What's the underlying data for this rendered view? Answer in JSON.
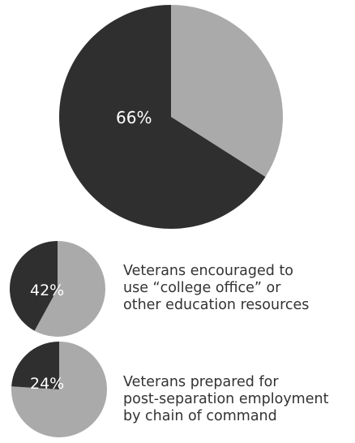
{
  "chart_data": [
    {
      "type": "pie",
      "slices": [
        {
          "value": 66,
          "label": "66%",
          "color": "#2f2f2f"
        },
        {
          "value": 34,
          "label": "",
          "color": "#aaaaaa"
        }
      ],
      "caption_lines": []
    },
    {
      "type": "pie",
      "slices": [
        {
          "value": 42,
          "label": "42%",
          "color": "#2f2f2f"
        },
        {
          "value": 58,
          "label": "",
          "color": "#aaaaaa"
        }
      ],
      "caption_lines": [
        "Veterans encouraged to",
        "use “college office” or",
        "other education resources"
      ]
    },
    {
      "type": "pie",
      "slices": [
        {
          "value": 24,
          "label": "24%",
          "color": "#2f2f2f"
        },
        {
          "value": 76,
          "label": "",
          "color": "#aaaaaa"
        }
      ],
      "caption_lines": [
        "Veterans prepared for",
        "post-separation employment",
        "by chain of command"
      ]
    }
  ]
}
